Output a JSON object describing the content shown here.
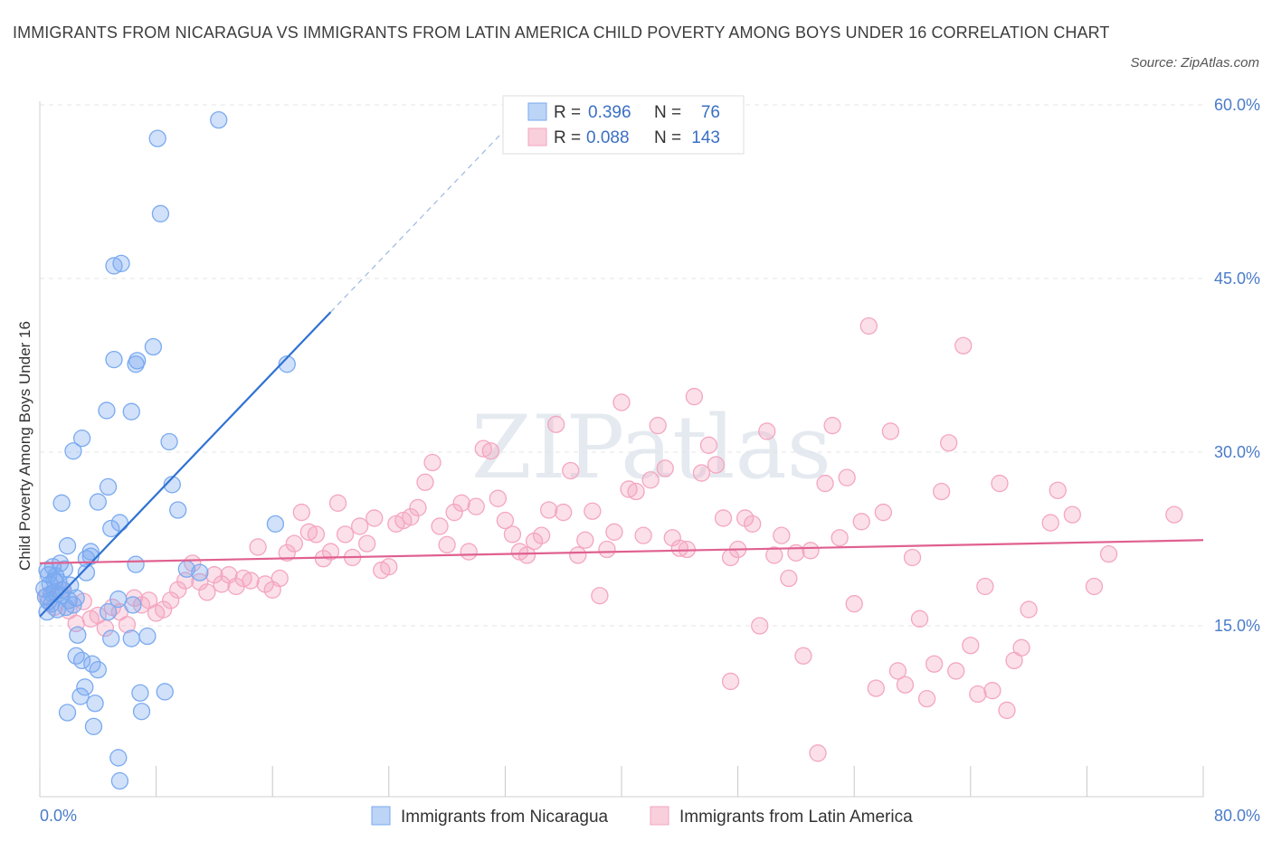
{
  "title": "IMMIGRANTS FROM NICARAGUA VS IMMIGRANTS FROM LATIN AMERICA CHILD POVERTY AMONG BOYS UNDER 16 CORRELATION CHART",
  "source": "Source: ZipAtlas.com",
  "watermark": "ZIPatlas",
  "chart_data": {
    "type": "scatter",
    "ylabel": "Child Poverty Among Boys Under 16",
    "xlim": [
      0,
      80
    ],
    "ylim": [
      0,
      61
    ],
    "yticks": [
      15,
      30,
      45,
      60
    ],
    "ytick_labels": [
      "15.0%",
      "30.0%",
      "45.0%",
      "60.0%"
    ],
    "xtick_labels": [
      "0.0%",
      "80.0%"
    ],
    "legend": [
      {
        "r_label": "R =",
        "r_value": "0.396",
        "n_label": "N =",
        "n_value": "76"
      },
      {
        "r_label": "R =",
        "r_value": "0.088",
        "n_label": "N =",
        "n_value": "143"
      }
    ],
    "series": [
      {
        "name": "Immigrants from Nicaragua",
        "color": "#7aaaf0",
        "line_color": "#2f72d2",
        "trend": {
          "x0": 0,
          "y0": 15.8,
          "x1": 20,
          "y1": 42.1,
          "dash_to_x": 34,
          "dash_to_y": 60.5
        },
        "points": [
          [
            0.3,
            18.2
          ],
          [
            0.4,
            17.5
          ],
          [
            0.5,
            19.8
          ],
          [
            0.6,
            17.1
          ],
          [
            0.7,
            18.6
          ],
          [
            0.8,
            16.9
          ],
          [
            0.9,
            20.1
          ],
          [
            1.0,
            17.9
          ],
          [
            1.1,
            19.3
          ],
          [
            1.2,
            16.4
          ],
          [
            1.3,
            18.8
          ],
          [
            1.4,
            20.4
          ],
          [
            1.5,
            17.6
          ],
          [
            1.6,
            18.1
          ],
          [
            1.7,
            19.9
          ],
          [
            1.8,
            16.6
          ],
          [
            2.0,
            17.2
          ],
          [
            2.1,
            18.5
          ],
          [
            2.3,
            16.8
          ],
          [
            2.5,
            17.4
          ],
          [
            0.5,
            16.2
          ],
          [
            0.8,
            17.8
          ],
          [
            1.0,
            18.9
          ],
          [
            0.6,
            19.4
          ],
          [
            1.5,
            25.6
          ],
          [
            1.9,
            21.9
          ],
          [
            2.6,
            14.2
          ],
          [
            2.5,
            12.4
          ],
          [
            2.9,
            12.0
          ],
          [
            2.9,
            31.2
          ],
          [
            2.3,
            30.1
          ],
          [
            3.2,
            19.6
          ],
          [
            3.5,
            21.4
          ],
          [
            3.5,
            21.0
          ],
          [
            3.2,
            20.8
          ],
          [
            3.6,
            11.7
          ],
          [
            4.0,
            11.2
          ],
          [
            3.8,
            8.3
          ],
          [
            3.7,
            6.3
          ],
          [
            3.1,
            9.7
          ],
          [
            2.8,
            8.9
          ],
          [
            1.9,
            7.5
          ],
          [
            4.0,
            25.7
          ],
          [
            4.6,
            33.6
          ],
          [
            4.7,
            27.0
          ],
          [
            4.9,
            23.4
          ],
          [
            5.1,
            38.0
          ],
          [
            5.1,
            46.1
          ],
          [
            5.6,
            46.3
          ],
          [
            5.5,
            23.9
          ],
          [
            5.4,
            17.3
          ],
          [
            5.4,
            3.6
          ],
          [
            5.5,
            1.6
          ],
          [
            4.7,
            16.2
          ],
          [
            4.9,
            13.9
          ],
          [
            6.3,
            33.5
          ],
          [
            6.4,
            16.8
          ],
          [
            6.3,
            13.9
          ],
          [
            6.6,
            20.3
          ],
          [
            6.6,
            37.6
          ],
          [
            6.7,
            37.9
          ],
          [
            6.9,
            9.2
          ],
          [
            7.0,
            7.6
          ],
          [
            7.4,
            14.1
          ],
          [
            7.8,
            39.1
          ],
          [
            8.1,
            57.1
          ],
          [
            8.3,
            50.6
          ],
          [
            8.6,
            9.3
          ],
          [
            8.9,
            30.9
          ],
          [
            9.1,
            27.2
          ],
          [
            9.5,
            25.0
          ],
          [
            10.1,
            19.9
          ],
          [
            11.0,
            19.6
          ],
          [
            12.3,
            58.7
          ],
          [
            16.2,
            23.8
          ],
          [
            17.0,
            37.6
          ]
        ]
      },
      {
        "name": "Immigrants from Latin America",
        "color": "#f4a6c0",
        "line_color": "#e0608f",
        "trend": {
          "x0": 0,
          "y0": 20.4,
          "x1": 80,
          "y1": 22.4
        },
        "points": [
          [
            0.5,
            17.6
          ],
          [
            1.0,
            16.6
          ],
          [
            1.5,
            18.1
          ],
          [
            2.0,
            16.3
          ],
          [
            2.5,
            15.2
          ],
          [
            3.0,
            17.1
          ],
          [
            3.5,
            15.6
          ],
          [
            4.0,
            15.9
          ],
          [
            4.5,
            14.8
          ],
          [
            5.0,
            16.6
          ],
          [
            5.5,
            16.2
          ],
          [
            6.0,
            15.1
          ],
          [
            6.5,
            17.4
          ],
          [
            7.0,
            16.8
          ],
          [
            7.5,
            17.2
          ],
          [
            8.0,
            16.1
          ],
          [
            8.5,
            16.4
          ],
          [
            9.0,
            17.2
          ],
          [
            9.5,
            18.1
          ],
          [
            10.0,
            18.9
          ],
          [
            10.5,
            20.4
          ],
          [
            11.0,
            18.8
          ],
          [
            11.5,
            17.9
          ],
          [
            12.0,
            19.4
          ],
          [
            12.5,
            18.6
          ],
          [
            13.0,
            19.4
          ],
          [
            13.5,
            18.4
          ],
          [
            14.0,
            19.1
          ],
          [
            14.5,
            18.9
          ],
          [
            15.0,
            21.8
          ],
          [
            15.5,
            18.6
          ],
          [
            16.0,
            18.1
          ],
          [
            16.5,
            19.1
          ],
          [
            17.0,
            21.3
          ],
          [
            17.5,
            22.1
          ],
          [
            18.0,
            24.8
          ],
          [
            18.5,
            23.1
          ],
          [
            19.0,
            22.9
          ],
          [
            19.5,
            20.8
          ],
          [
            20.0,
            21.4
          ],
          [
            20.5,
            25.6
          ],
          [
            21.0,
            22.9
          ],
          [
            21.5,
            20.9
          ],
          [
            22.0,
            23.6
          ],
          [
            22.5,
            22.1
          ],
          [
            23.0,
            24.3
          ],
          [
            23.5,
            19.8
          ],
          [
            24.0,
            20.1
          ],
          [
            24.5,
            23.8
          ],
          [
            25.0,
            24.1
          ],
          [
            25.5,
            24.4
          ],
          [
            26.0,
            25.2
          ],
          [
            26.5,
            27.4
          ],
          [
            27.0,
            29.1
          ],
          [
            27.5,
            23.6
          ],
          [
            28.0,
            22.0
          ],
          [
            28.5,
            24.8
          ],
          [
            29.0,
            25.6
          ],
          [
            29.5,
            21.4
          ],
          [
            30.0,
            25.3
          ],
          [
            30.5,
            30.3
          ],
          [
            31.0,
            30.1
          ],
          [
            31.5,
            26.0
          ],
          [
            32.0,
            24.1
          ],
          [
            32.5,
            22.9
          ],
          [
            33.0,
            21.4
          ],
          [
            33.5,
            21.1
          ],
          [
            34.0,
            22.3
          ],
          [
            34.5,
            22.8
          ],
          [
            35.0,
            25.0
          ],
          [
            35.5,
            32.4
          ],
          [
            36.0,
            24.8
          ],
          [
            36.5,
            28.4
          ],
          [
            37.0,
            21.1
          ],
          [
            37.5,
            22.4
          ],
          [
            38.0,
            24.9
          ],
          [
            38.5,
            17.6
          ],
          [
            39.0,
            21.6
          ],
          [
            39.5,
            23.1
          ],
          [
            40.0,
            34.3
          ],
          [
            40.5,
            26.8
          ],
          [
            41.0,
            26.6
          ],
          [
            41.5,
            22.8
          ],
          [
            42.0,
            27.6
          ],
          [
            42.5,
            32.3
          ],
          [
            43.0,
            28.6
          ],
          [
            43.5,
            22.6
          ],
          [
            44.0,
            21.7
          ],
          [
            44.5,
            21.6
          ],
          [
            45.0,
            34.8
          ],
          [
            45.5,
            28.2
          ],
          [
            46.0,
            30.6
          ],
          [
            46.5,
            28.9
          ],
          [
            47.0,
            24.3
          ],
          [
            47.5,
            20.9
          ],
          [
            47.5,
            10.2
          ],
          [
            48.0,
            21.6
          ],
          [
            48.5,
            24.3
          ],
          [
            49.0,
            23.8
          ],
          [
            49.5,
            15.0
          ],
          [
            50.0,
            31.8
          ],
          [
            50.5,
            21.1
          ],
          [
            51.0,
            22.8
          ],
          [
            51.5,
            19.1
          ],
          [
            52.0,
            21.3
          ],
          [
            52.5,
            12.4
          ],
          [
            53.0,
            21.5
          ],
          [
            53.5,
            4.0
          ],
          [
            54.0,
            27.3
          ],
          [
            54.5,
            32.3
          ],
          [
            55.0,
            22.6
          ],
          [
            55.5,
            27.8
          ],
          [
            56.0,
            16.9
          ],
          [
            56.5,
            24.0
          ],
          [
            57.0,
            40.9
          ],
          [
            57.5,
            9.6
          ],
          [
            58.0,
            24.8
          ],
          [
            58.5,
            31.8
          ],
          [
            59.0,
            11.1
          ],
          [
            59.5,
            9.9
          ],
          [
            60.0,
            20.9
          ],
          [
            60.5,
            15.6
          ],
          [
            61.0,
            8.7
          ],
          [
            61.5,
            11.7
          ],
          [
            62.0,
            26.6
          ],
          [
            62.5,
            30.8
          ],
          [
            63.0,
            11.1
          ],
          [
            63.5,
            39.2
          ],
          [
            64.0,
            13.3
          ],
          [
            64.5,
            9.1
          ],
          [
            65.0,
            18.4
          ],
          [
            65.5,
            9.4
          ],
          [
            66.0,
            27.3
          ],
          [
            66.5,
            7.7
          ],
          [
            67.0,
            12.0
          ],
          [
            67.5,
            13.1
          ],
          [
            68.0,
            16.4
          ],
          [
            69.5,
            23.9
          ],
          [
            70.0,
            26.7
          ],
          [
            71.0,
            24.6
          ],
          [
            72.5,
            18.4
          ],
          [
            73.5,
            21.2
          ],
          [
            78.0,
            24.6
          ]
        ]
      }
    ]
  }
}
